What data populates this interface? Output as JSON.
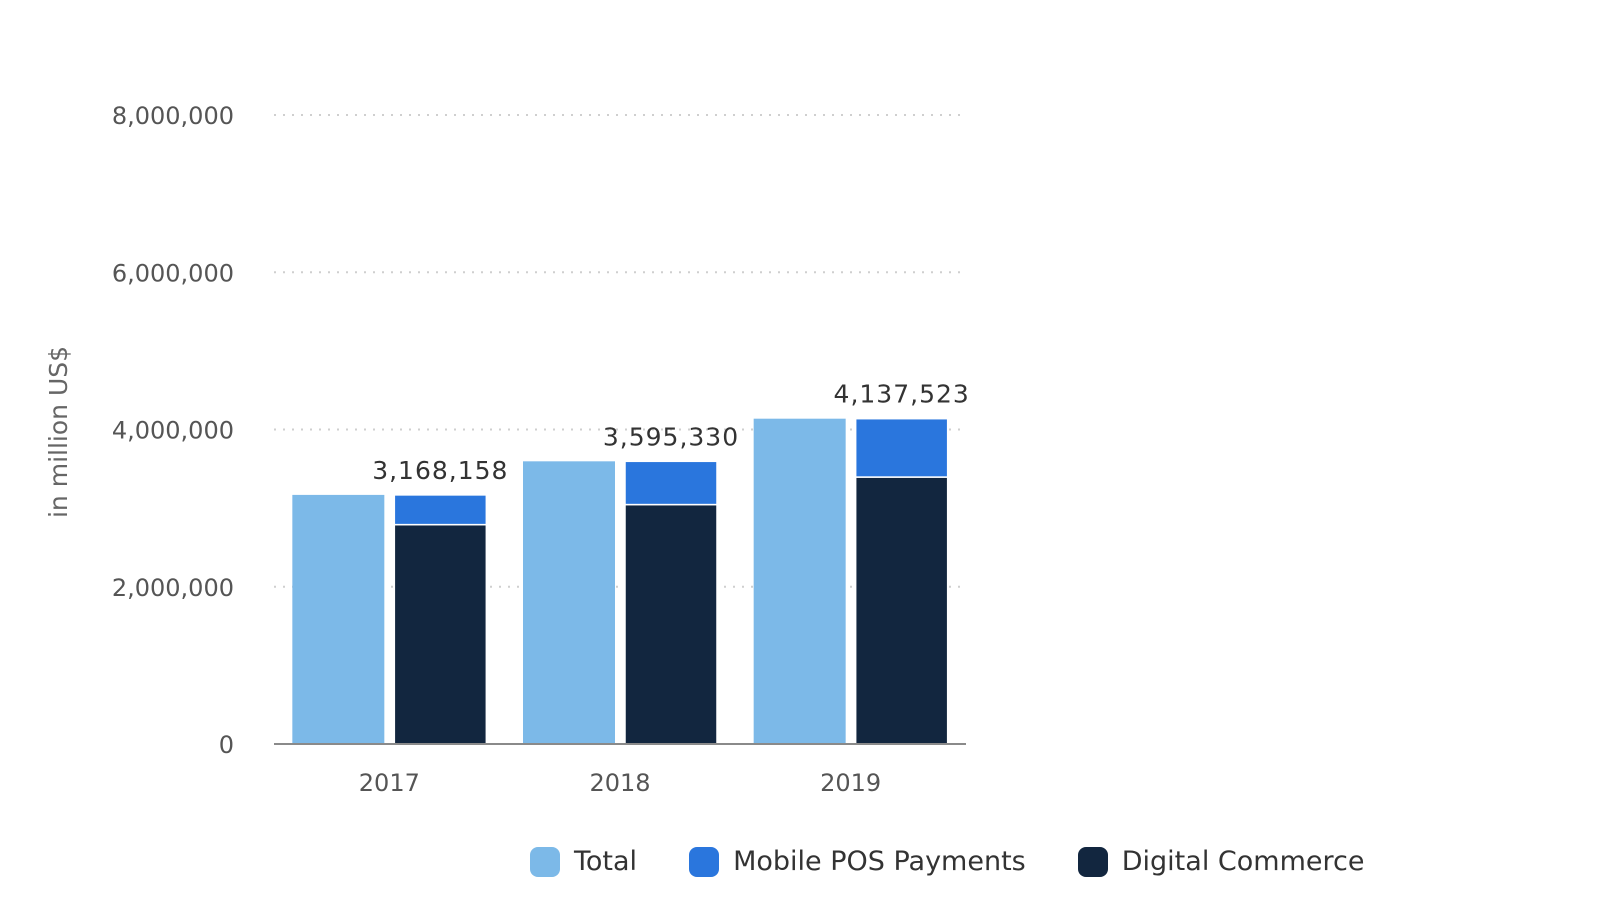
{
  "chart_data": {
    "type": "bar",
    "categories": [
      "2017",
      "2018",
      "2019"
    ],
    "ylabel": "in million US$",
    "xlabel": "",
    "ylim": [
      0,
      8000000
    ],
    "yticks": [
      0,
      2000000,
      4000000,
      6000000,
      8000000
    ],
    "ytick_labels": [
      "0",
      "2,000,000",
      "4,000,000",
      "6,000,000",
      "8,000,000"
    ],
    "grid": true,
    "legend_position": "bottom",
    "series": [
      {
        "name": "Total",
        "stack": "total",
        "color": "#7cb9e8",
        "values": [
          3168158,
          3595330,
          4137523
        ]
      },
      {
        "name": "Digital Commerce",
        "stack": "split",
        "color": "#12263f",
        "values": [
          2790000,
          3045000,
          3395000
        ]
      },
      {
        "name": "Mobile POS Payments",
        "stack": "split",
        "color": "#2a76dd",
        "values": [
          378158,
          550330,
          742523
        ]
      }
    ],
    "data_labels": [
      "3,168,158",
      "3,595,330",
      "4,137,523"
    ]
  },
  "legend": [
    {
      "label": "Total",
      "color": "#7cb9e8"
    },
    {
      "label": "Mobile POS Payments",
      "color": "#2a76dd"
    },
    {
      "label": "Digital Commerce",
      "color": "#12263f"
    }
  ]
}
